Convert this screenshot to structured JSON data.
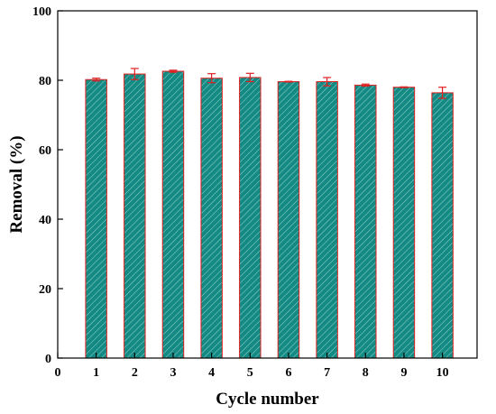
{
  "chart_data": {
    "type": "bar",
    "title": "",
    "xlabel": "Cycle number",
    "ylabel": "Removal (%)",
    "categories": [
      "1",
      "2",
      "3",
      "4",
      "5",
      "6",
      "7",
      "8",
      "9",
      "10"
    ],
    "values": [
      80.2,
      81.8,
      82.6,
      80.6,
      80.8,
      79.6,
      79.6,
      78.6,
      78.0,
      76.4
    ],
    "errors": [
      0.4,
      1.6,
      0.3,
      1.3,
      1.2,
      0.1,
      1.2,
      0.3,
      0.1,
      1.6
    ],
    "xlim": [
      0,
      10.9
    ],
    "x_ticks": [
      "0",
      "1",
      "2",
      "3",
      "4",
      "5",
      "6",
      "7",
      "8",
      "9",
      "10"
    ],
    "ylim": [
      0,
      100
    ],
    "y_ticks": [
      "0",
      "20",
      "40",
      "60",
      "80",
      "100"
    ],
    "grid": false,
    "legend": "none",
    "colors": {
      "bar_fill": "#138a83",
      "bar_hatch": "#9fd3cd",
      "bar_edge": "#e02020",
      "error_bar": "#e02020",
      "axis": "#000000"
    }
  }
}
